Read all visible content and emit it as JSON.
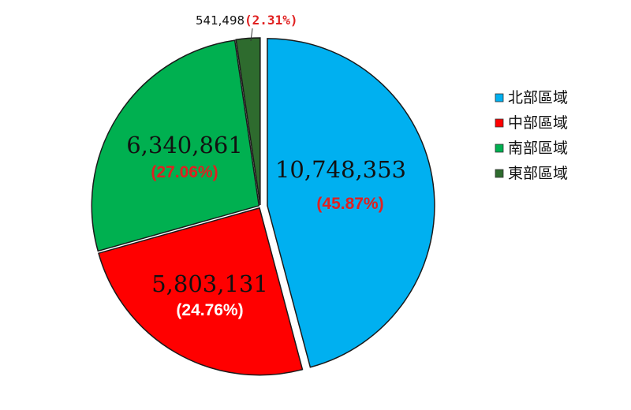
{
  "chart_data": {
    "type": "pie",
    "title": "",
    "slices": [
      {
        "label": "北部區域",
        "value": 10748353,
        "value_text": "10,748,353",
        "percent": 45.87,
        "percent_text": "(45.87%)",
        "color": "#00B0F0",
        "percent_color": "#E02020",
        "exploded": true
      },
      {
        "label": "中部區域",
        "value": 5803131,
        "value_text": "5,803,131",
        "percent": 24.76,
        "percent_text": "(24.76%)",
        "color": "#FF0000",
        "percent_color": "#FFFFFF",
        "exploded": false
      },
      {
        "label": "南部區域",
        "value": 6340861,
        "value_text": "6,340,861",
        "percent": 27.06,
        "percent_text": "(27.06%)",
        "color": "#00B050",
        "percent_color": "#E02020",
        "exploded": false
      },
      {
        "label": "東部區域",
        "value": 541498,
        "value_text": "541,498",
        "percent": 2.31,
        "percent_text": "(2.31%)",
        "color": "#2E6B2E",
        "percent_color": "#E02020",
        "exploded": false
      }
    ],
    "legend": {
      "position": "right",
      "entries": [
        "北部區域",
        "中部區域",
        "南部區域",
        "東部區域"
      ]
    }
  }
}
